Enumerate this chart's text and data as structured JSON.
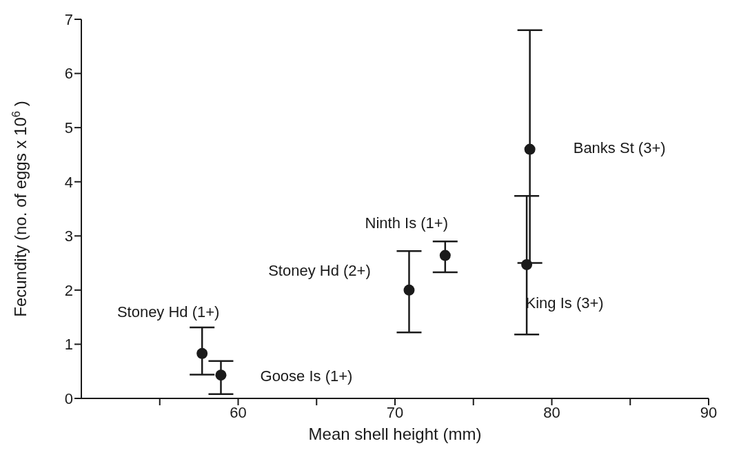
{
  "chart_data": {
    "type": "scatter",
    "xlabel": "Mean shell height (mm)",
    "ylabel": "Fecundity (no. of eggs x 10$^{6}$ )",
    "x": [
      57.7,
      58.9,
      70.9,
      73.2,
      78.4,
      78.6
    ],
    "values": [
      0.83,
      0.43,
      2.0,
      2.64,
      2.47,
      4.6
    ],
    "errors": [
      [
        0.44,
        1.31
      ],
      [
        0.08,
        0.69
      ],
      [
        1.22,
        2.72
      ],
      [
        2.33,
        2.9
      ],
      [
        1.18,
        3.74
      ],
      [
        2.5,
        6.8
      ]
    ],
    "color": "#1a1a1a",
    "marker": "circle",
    "xlim": [
      50,
      90
    ],
    "xticks": [
      {
        "value": 55,
        "label": null
      },
      60,
      {
        "value": 65,
        "label": null
      },
      70,
      {
        "value": 75,
        "label": null
      },
      80,
      {
        "value": 85,
        "label": null
      },
      90
    ],
    "ylim": [
      0,
      7
    ],
    "yticks": [
      0,
      1,
      2,
      3,
      4,
      5,
      6,
      7
    ],
    "grid": false,
    "legend": false,
    "annotations": [
      "Stoney Hd (1+)",
      "Goose Is (1+)",
      "Stoney Hd (2+)",
      "Ninth Is (1+)",
      "King Is (3+)",
      "Banks St (3+)"
    ]
  }
}
